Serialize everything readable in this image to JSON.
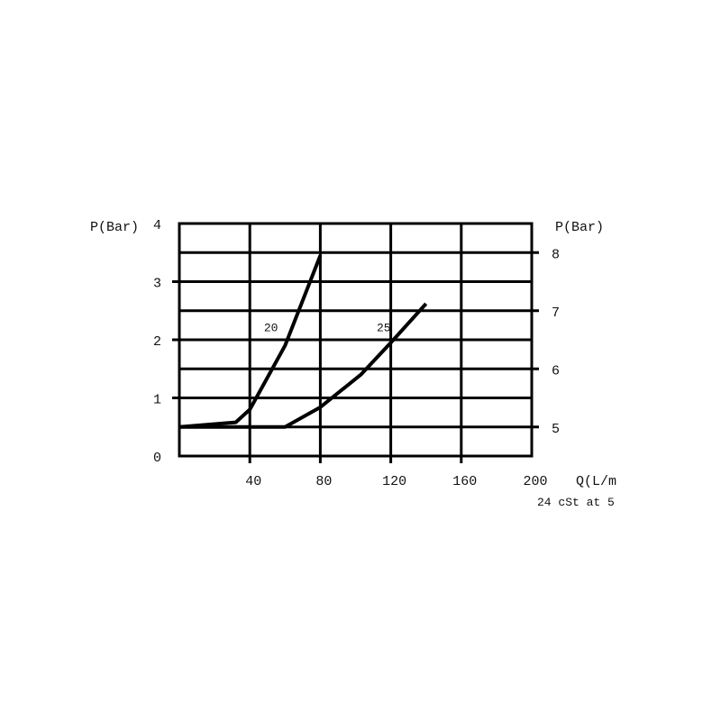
{
  "chart_data": {
    "type": "line",
    "title": "",
    "xlabel": "Q(L/m",
    "ylabel_left": "P(Bar)",
    "ylabel_right": "P(Bar)",
    "note": "24 cSt at 5",
    "xlim": [
      0,
      200
    ],
    "ylim_left": [
      0,
      4
    ],
    "x_ticks": [
      "40",
      "80",
      "120",
      "160",
      "200"
    ],
    "x_tick_values": [
      40,
      80,
      120,
      160,
      200
    ],
    "y_left_ticks": [
      "0",
      "1",
      "2",
      "3",
      "4"
    ],
    "y_left_tick_values": [
      0,
      1,
      2,
      3,
      4
    ],
    "y_right_ticks": [
      "5",
      "6",
      "7",
      "8"
    ],
    "y_right_tick_values": [
      5,
      6,
      7,
      8
    ],
    "y_right_offset": 4.5,
    "grid": true,
    "color": "#000000",
    "series": [
      {
        "name": "20",
        "label_at": [
          48,
          2.15
        ],
        "points": [
          [
            0,
            0.5
          ],
          [
            32,
            0.58
          ],
          [
            40,
            0.8
          ],
          [
            60,
            1.9
          ],
          [
            80,
            3.45
          ]
        ]
      },
      {
        "name": "25",
        "label_at": [
          112,
          2.15
        ],
        "points": [
          [
            0,
            0.5
          ],
          [
            60,
            0.5
          ],
          [
            80,
            0.84
          ],
          [
            103,
            1.4
          ],
          [
            120,
            1.95
          ],
          [
            140,
            2.62
          ]
        ]
      }
    ]
  }
}
